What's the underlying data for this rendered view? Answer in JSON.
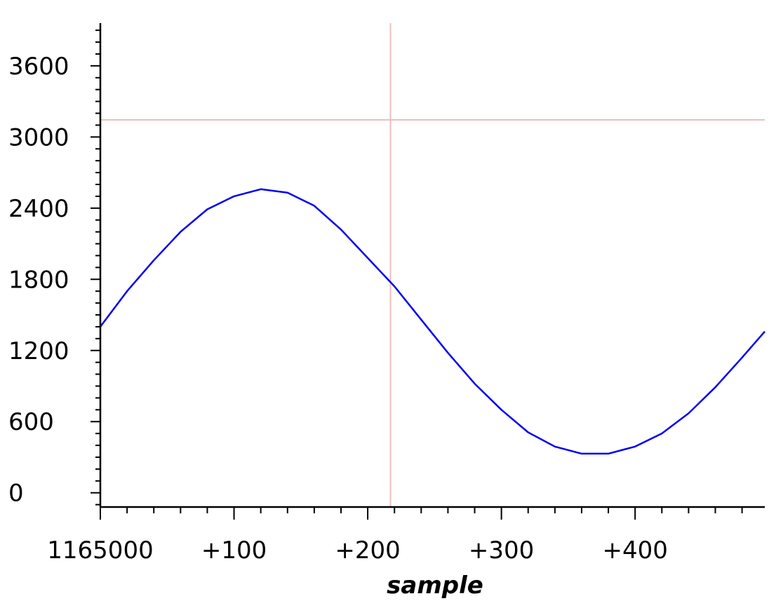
{
  "chart_data": {
    "type": "line",
    "xlabel": "sample",
    "ylabel": "",
    "x_tick_labels": [
      "1165000",
      "+100",
      "+200",
      "+300",
      "+400"
    ],
    "x_ticks": [
      1165000,
      1165100,
      1165200,
      1165300,
      1165400
    ],
    "y_ticks": [
      0,
      600,
      1200,
      1800,
      2400,
      3000,
      3600
    ],
    "y_tick_labels": [
      "0",
      "600",
      "1200",
      "1800",
      "2400",
      "3000",
      "3600"
    ],
    "xlim": [
      1165000,
      1165497
    ],
    "ylim": [
      -120,
      3960
    ],
    "grid": false,
    "cursor": {
      "x": 1165217,
      "y": 3145
    },
    "series": [
      {
        "color": "#0000ee",
        "x": [
          1165000,
          1165020,
          1165040,
          1165060,
          1165080,
          1165100,
          1165120,
          1165140,
          1165160,
          1165180,
          1165200,
          1165220,
          1165240,
          1165260,
          1165280,
          1165300,
          1165320,
          1165340,
          1165360,
          1165380,
          1165400,
          1165420,
          1165440,
          1165460,
          1165480,
          1165497
        ],
        "values": [
          1400,
          1700,
          1960,
          2200,
          2390,
          2500,
          2560,
          2530,
          2420,
          2220,
          1980,
          1740,
          1460,
          1180,
          920,
          700,
          510,
          390,
          330,
          330,
          390,
          500,
          670,
          890,
          1140,
          1360
        ]
      }
    ],
    "colors": {
      "line": "#0000ee",
      "cursor": "#f0bcbc",
      "axis": "#000000"
    }
  }
}
